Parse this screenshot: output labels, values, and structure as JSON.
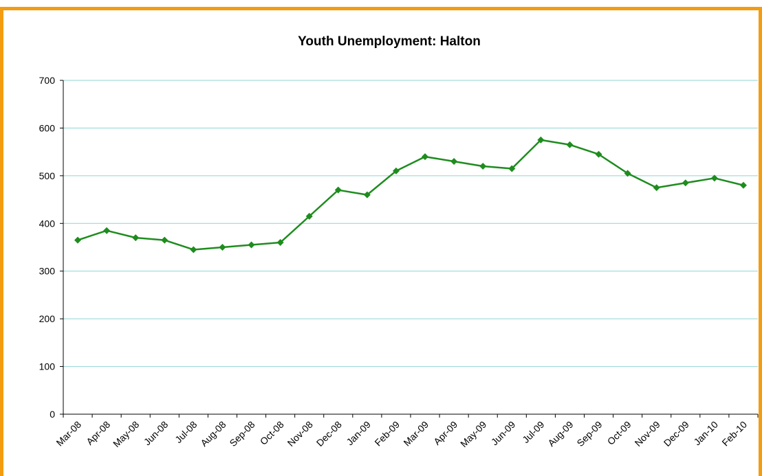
{
  "colors": {
    "frame": "#F39C12",
    "series": "#1E8C1E",
    "gridline": "#8FD4D4",
    "axis": "#000000"
  },
  "chart_data": {
    "type": "line",
    "title": "Youth Unemployment: Halton",
    "xlabel": "",
    "ylabel": "",
    "ylim": [
      0,
      700
    ],
    "yticks": [
      "0",
      "100",
      "200",
      "300",
      "400",
      "500",
      "600",
      "700"
    ],
    "grid": true,
    "legend": "none",
    "marker": "diamond",
    "categories": [
      "Mar-08",
      "Apr-08",
      "May-08",
      "Jun-08",
      "Jul-08",
      "Aug-08",
      "Sep-08",
      "Oct-08",
      "Nov-08",
      "Dec-08",
      "Jan-09",
      "Feb-09",
      "Mar-09",
      "Apr-09",
      "May-09",
      "Jun-09",
      "Jul-09",
      "Aug-09",
      "Sep-09",
      "Oct-09",
      "Nov-09",
      "Dec-09",
      "Jan-10",
      "Feb-10"
    ],
    "series": [
      {
        "values": [
          365,
          385,
          370,
          365,
          345,
          350,
          355,
          360,
          415,
          470,
          460,
          510,
          540,
          530,
          520,
          515,
          575,
          565,
          545,
          505,
          475,
          485,
          495,
          480
        ]
      }
    ]
  }
}
